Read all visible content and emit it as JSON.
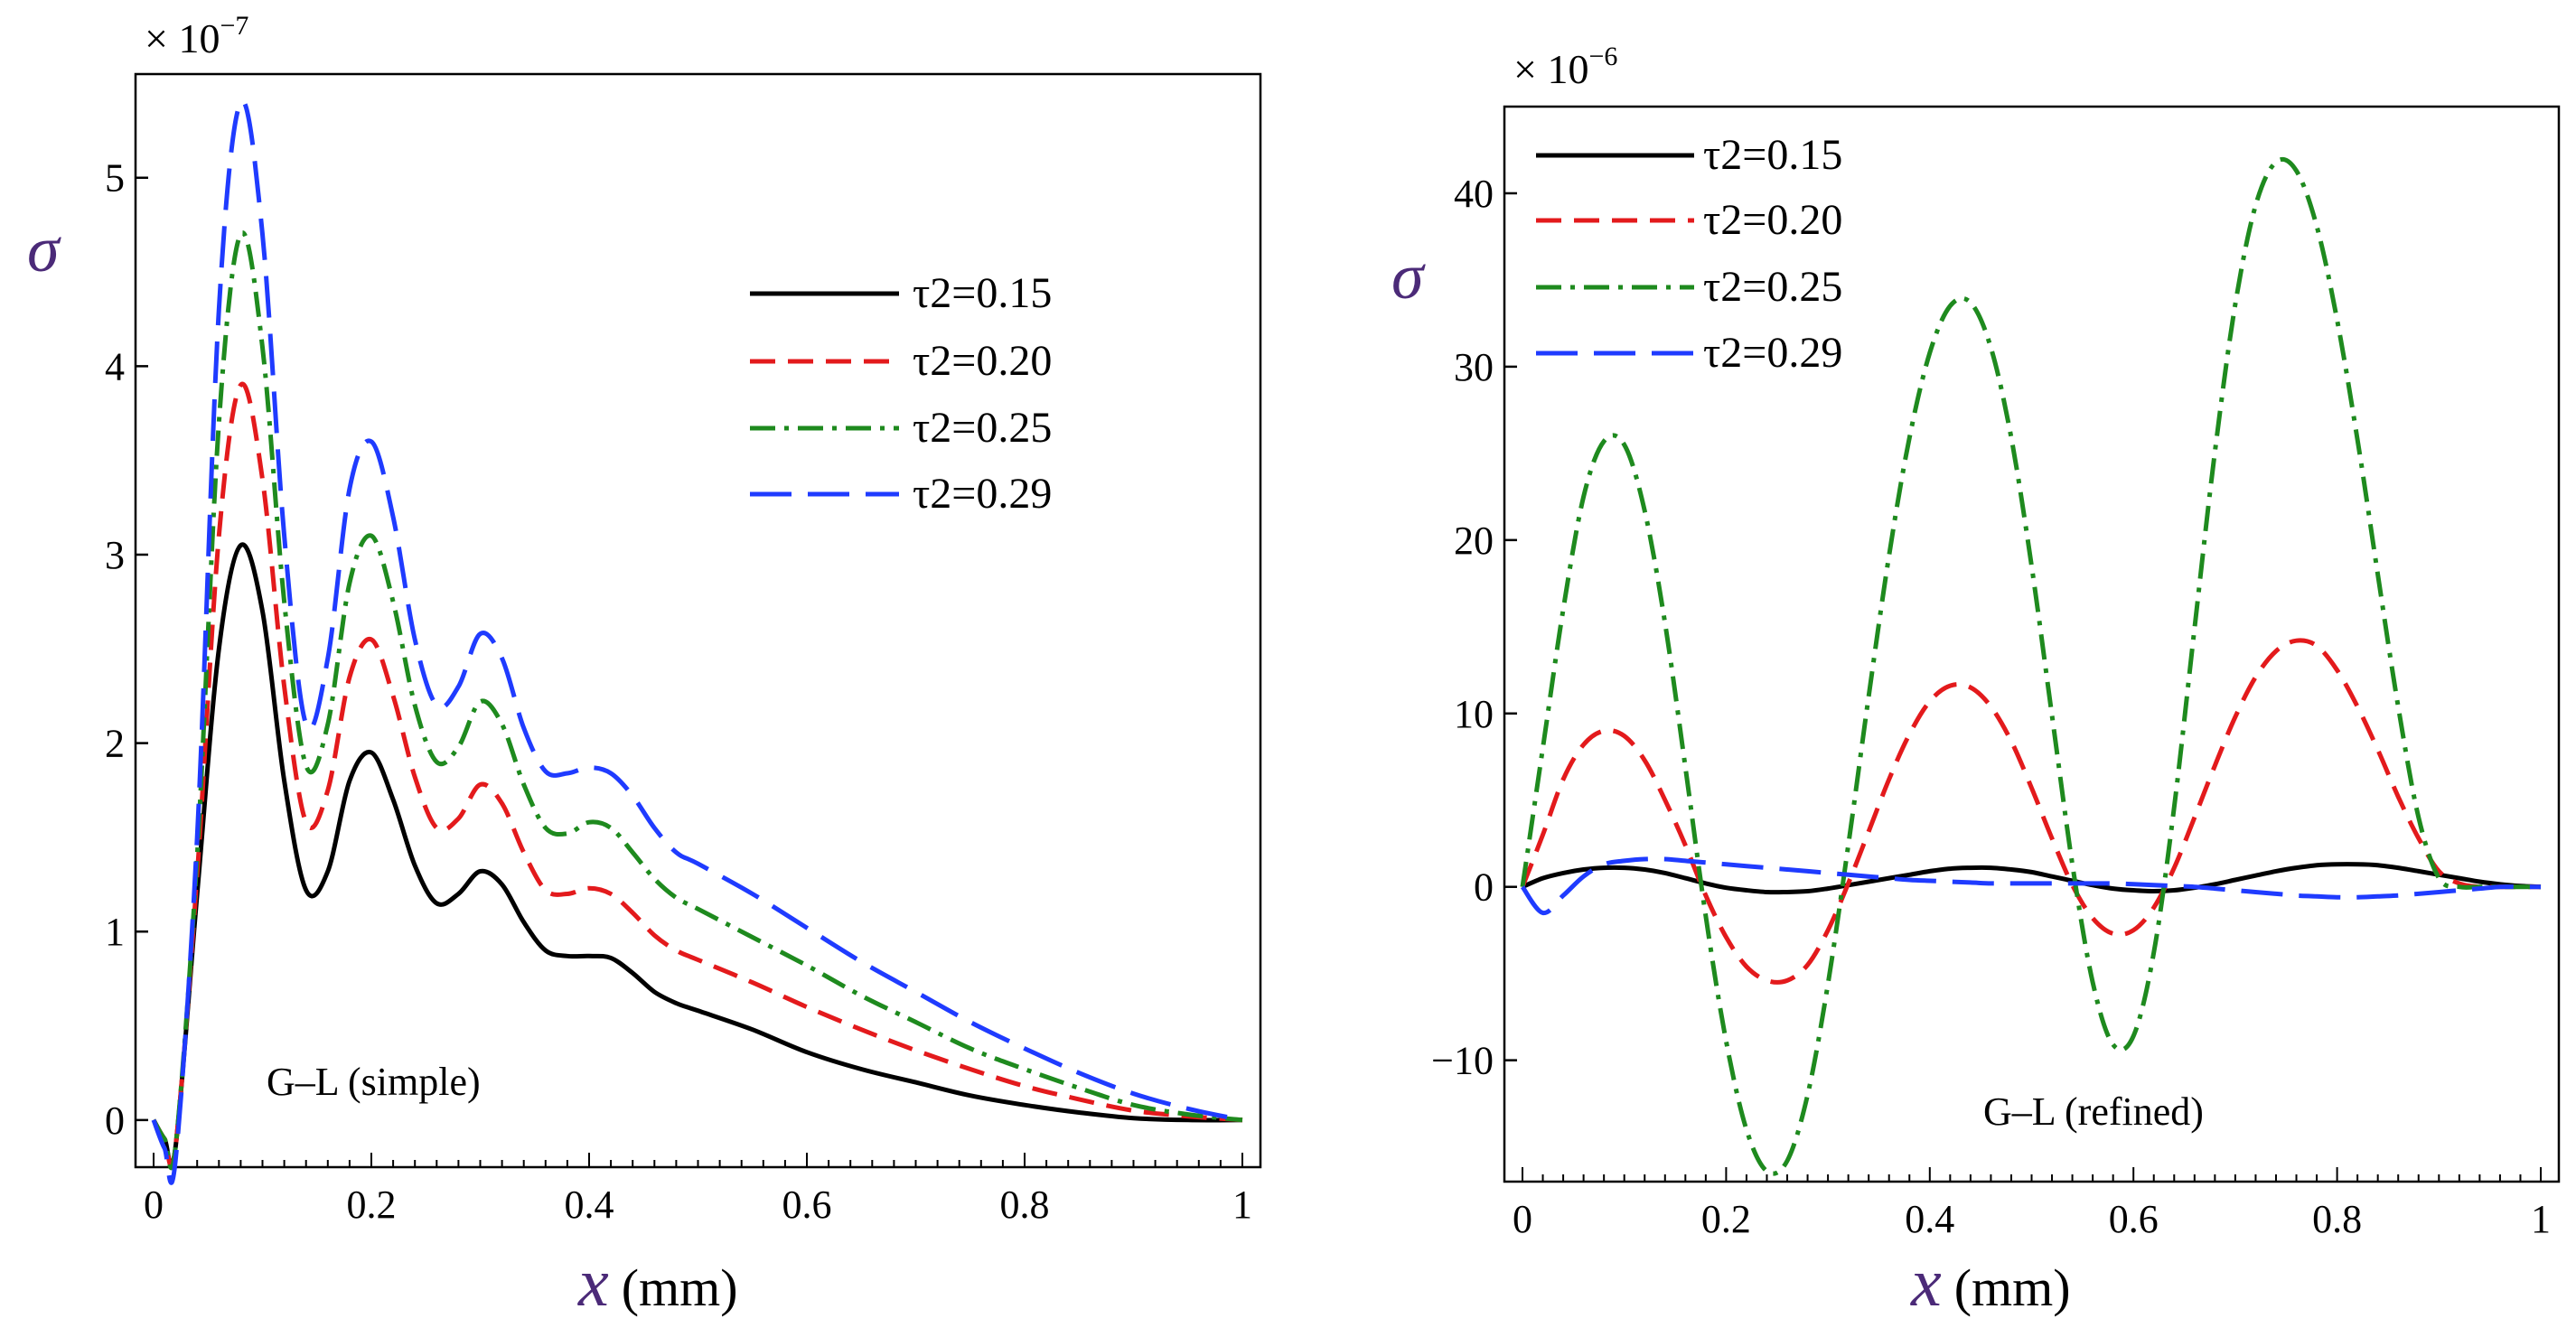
{
  "chart_data": [
    {
      "type": "line",
      "panel": "left",
      "multiplier": "× 10",
      "multiplier_exponent": "−7",
      "ylabel": "σ",
      "xlabel_symbol": "x",
      "xlabel_unit": "(mm)",
      "annotation": "G–L (simple)",
      "xlim": [
        0,
        1
      ],
      "ylim": [
        -0.25,
        5.55
      ],
      "xticks": [
        0,
        0.2,
        0.4,
        0.6,
        0.8,
        1
      ],
      "xtick_labels": [
        "0",
        "0.2",
        "0.4",
        "0.6",
        "0.8",
        "1"
      ],
      "yticks": [
        0,
        1,
        2,
        3,
        4,
        5
      ],
      "ytick_labels": [
        "0",
        "1",
        "2",
        "3",
        "4",
        "5"
      ],
      "legend_position": "top-right",
      "x": [
        0,
        0.01,
        0.02,
        0.04,
        0.06,
        0.08,
        0.1,
        0.12,
        0.14,
        0.16,
        0.18,
        0.2,
        0.22,
        0.24,
        0.26,
        0.28,
        0.3,
        0.32,
        0.34,
        0.36,
        0.38,
        0.4,
        0.42,
        0.44,
        0.46,
        0.48,
        0.5,
        0.55,
        0.6,
        0.65,
        0.7,
        0.75,
        0.8,
        0.85,
        0.9,
        0.95,
        1
      ],
      "series": [
        {
          "name": "τ2=0.15",
          "color": "#000000",
          "dash": "solid",
          "values": [
            0,
            -0.1,
            -0.15,
            1.2,
            2.5,
            3.05,
            2.7,
            1.8,
            1.22,
            1.32,
            1.8,
            1.95,
            1.7,
            1.35,
            1.15,
            1.2,
            1.32,
            1.25,
            1.05,
            0.9,
            0.87,
            0.87,
            0.86,
            0.78,
            0.68,
            0.62,
            0.58,
            0.48,
            0.36,
            0.27,
            0.2,
            0.13,
            0.08,
            0.04,
            0.01,
            0.0,
            0
          ]
        },
        {
          "name": "τ2=0.20",
          "color": "#e31a1c",
          "dash": "dash",
          "values": [
            0,
            -0.1,
            -0.15,
            1.3,
            3.1,
            3.9,
            3.4,
            2.3,
            1.58,
            1.75,
            2.35,
            2.55,
            2.25,
            1.82,
            1.55,
            1.6,
            1.78,
            1.68,
            1.42,
            1.22,
            1.2,
            1.23,
            1.2,
            1.1,
            0.98,
            0.9,
            0.85,
            0.73,
            0.6,
            0.48,
            0.37,
            0.27,
            0.18,
            0.11,
            0.05,
            0.02,
            0
          ]
        },
        {
          "name": "τ2=0.25",
          "color": "#1e8a1e",
          "dash": "dashdot",
          "values": [
            0,
            -0.1,
            -0.15,
            1.4,
            3.7,
            4.7,
            4.1,
            2.75,
            1.88,
            2.1,
            2.85,
            3.1,
            2.75,
            2.2,
            1.9,
            1.98,
            2.22,
            2.1,
            1.78,
            1.55,
            1.52,
            1.58,
            1.55,
            1.42,
            1.28,
            1.18,
            1.12,
            0.97,
            0.82,
            0.66,
            0.52,
            0.38,
            0.27,
            0.17,
            0.08,
            0.03,
            0
          ]
        },
        {
          "name": "τ2=0.29",
          "color": "#1f3bff",
          "dash": "longdash",
          "values": [
            0,
            -0.15,
            -0.22,
            1.5,
            4.3,
            5.4,
            4.7,
            3.1,
            2.1,
            2.45,
            3.35,
            3.6,
            3.2,
            2.55,
            2.2,
            2.3,
            2.58,
            2.45,
            2.08,
            1.85,
            1.84,
            1.87,
            1.84,
            1.72,
            1.55,
            1.42,
            1.36,
            1.2,
            1.02,
            0.84,
            0.68,
            0.52,
            0.38,
            0.25,
            0.14,
            0.06,
            0
          ]
        }
      ]
    },
    {
      "type": "line",
      "panel": "right",
      "multiplier": "× 10",
      "multiplier_exponent": "−6",
      "ylabel": "σ",
      "xlabel_symbol": "x",
      "xlabel_unit": "(mm)",
      "annotation": "G–L (refined)",
      "xlim": [
        0,
        1
      ],
      "ylim": [
        -17,
        45
      ],
      "xticks": [
        0,
        0.2,
        0.4,
        0.6,
        0.8,
        1
      ],
      "xtick_labels": [
        "0",
        "0.2",
        "0.4",
        "0.6",
        "0.8",
        "1"
      ],
      "yticks": [
        -10,
        0,
        10,
        20,
        30,
        40
      ],
      "ytick_labels": [
        "−10",
        "0",
        "10",
        "20",
        "30",
        "40"
      ],
      "legend_position": "top-left",
      "x": [
        0,
        0.02,
        0.04,
        0.06,
        0.08,
        0.1,
        0.12,
        0.14,
        0.16,
        0.18,
        0.2,
        0.22,
        0.24,
        0.26,
        0.28,
        0.3,
        0.32,
        0.34,
        0.36,
        0.38,
        0.4,
        0.42,
        0.44,
        0.46,
        0.48,
        0.5,
        0.52,
        0.54,
        0.56,
        0.58,
        0.6,
        0.62,
        0.64,
        0.66,
        0.68,
        0.7,
        0.72,
        0.74,
        0.76,
        0.78,
        0.8,
        0.82,
        0.84,
        0.86,
        0.88,
        0.9,
        0.92,
        0.94,
        0.96,
        0.98,
        1
      ],
      "series": [
        {
          "name": "τ2=0.15",
          "color": "#000000",
          "dash": "solid",
          "values": [
            0,
            0.5,
            0.8,
            1.0,
            1.1,
            1.1,
            1.0,
            0.8,
            0.5,
            0.2,
            -0.05,
            -0.2,
            -0.3,
            -0.3,
            -0.25,
            -0.1,
            0.1,
            0.3,
            0.5,
            0.7,
            0.9,
            1.05,
            1.1,
            1.1,
            1.0,
            0.85,
            0.6,
            0.35,
            0.1,
            -0.1,
            -0.2,
            -0.25,
            -0.2,
            -0.05,
            0.15,
            0.4,
            0.65,
            0.9,
            1.1,
            1.25,
            1.3,
            1.3,
            1.25,
            1.1,
            0.9,
            0.7,
            0.5,
            0.3,
            0.15,
            0.05,
            0
          ]
        },
        {
          "name": "τ2=0.20",
          "color": "#e31a1c",
          "dash": "dash",
          "values": [
            0,
            3.0,
            6.2,
            8.2,
            9.0,
            8.7,
            7.3,
            5.0,
            2.4,
            -0.5,
            -2.9,
            -4.6,
            -5.4,
            -5.4,
            -4.5,
            -2.5,
            0.2,
            3.2,
            6.2,
            8.8,
            10.7,
            11.6,
            11.5,
            10.4,
            8.4,
            5.7,
            2.8,
            0.1,
            -1.8,
            -2.7,
            -2.5,
            -1.2,
            1.1,
            4.0,
            7.0,
            9.8,
            12.1,
            13.6,
            14.2,
            13.9,
            12.5,
            10.4,
            7.9,
            5.2,
            2.8,
            0.9,
            0.2,
            0,
            0,
            0,
            0
          ]
        },
        {
          "name": "τ2=0.25",
          "color": "#1e8a1e",
          "dash": "dashdot",
          "values": [
            0,
            8.0,
            16.0,
            22.5,
            25.7,
            25.5,
            21.7,
            15.2,
            6.9,
            -1.7,
            -8.9,
            -14.0,
            -16.4,
            -15.8,
            -12.0,
            -5.6,
            2.4,
            11.0,
            19.1,
            25.9,
            30.8,
            33.5,
            33.7,
            31.1,
            25.9,
            18.5,
            9.9,
            1.3,
            -5.5,
            -9.1,
            -8.6,
            -3.8,
            4.6,
            14.9,
            25.1,
            33.6,
            39.3,
            41.8,
            41.3,
            38.1,
            32.7,
            25.8,
            18.0,
            10.4,
            4.0,
            0.5,
            0,
            0,
            0,
            0,
            0
          ]
        },
        {
          "name": "τ2=0.29",
          "color": "#1f3bff",
          "dash": "longdash",
          "values": [
            0,
            -1.5,
            -0.5,
            0.6,
            1.3,
            1.5,
            1.6,
            1.6,
            1.5,
            1.4,
            1.3,
            1.2,
            1.1,
            1.0,
            0.9,
            0.8,
            0.7,
            0.6,
            0.5,
            0.4,
            0.35,
            0.3,
            0.25,
            0.2,
            0.2,
            0.2,
            0.2,
            0.2,
            0.2,
            0.2,
            0.15,
            0.1,
            0.05,
            0,
            -0.1,
            -0.2,
            -0.3,
            -0.4,
            -0.5,
            -0.55,
            -0.6,
            -0.6,
            -0.55,
            -0.5,
            -0.4,
            -0.3,
            -0.2,
            -0.1,
            0,
            0,
            0
          ]
        }
      ]
    }
  ]
}
